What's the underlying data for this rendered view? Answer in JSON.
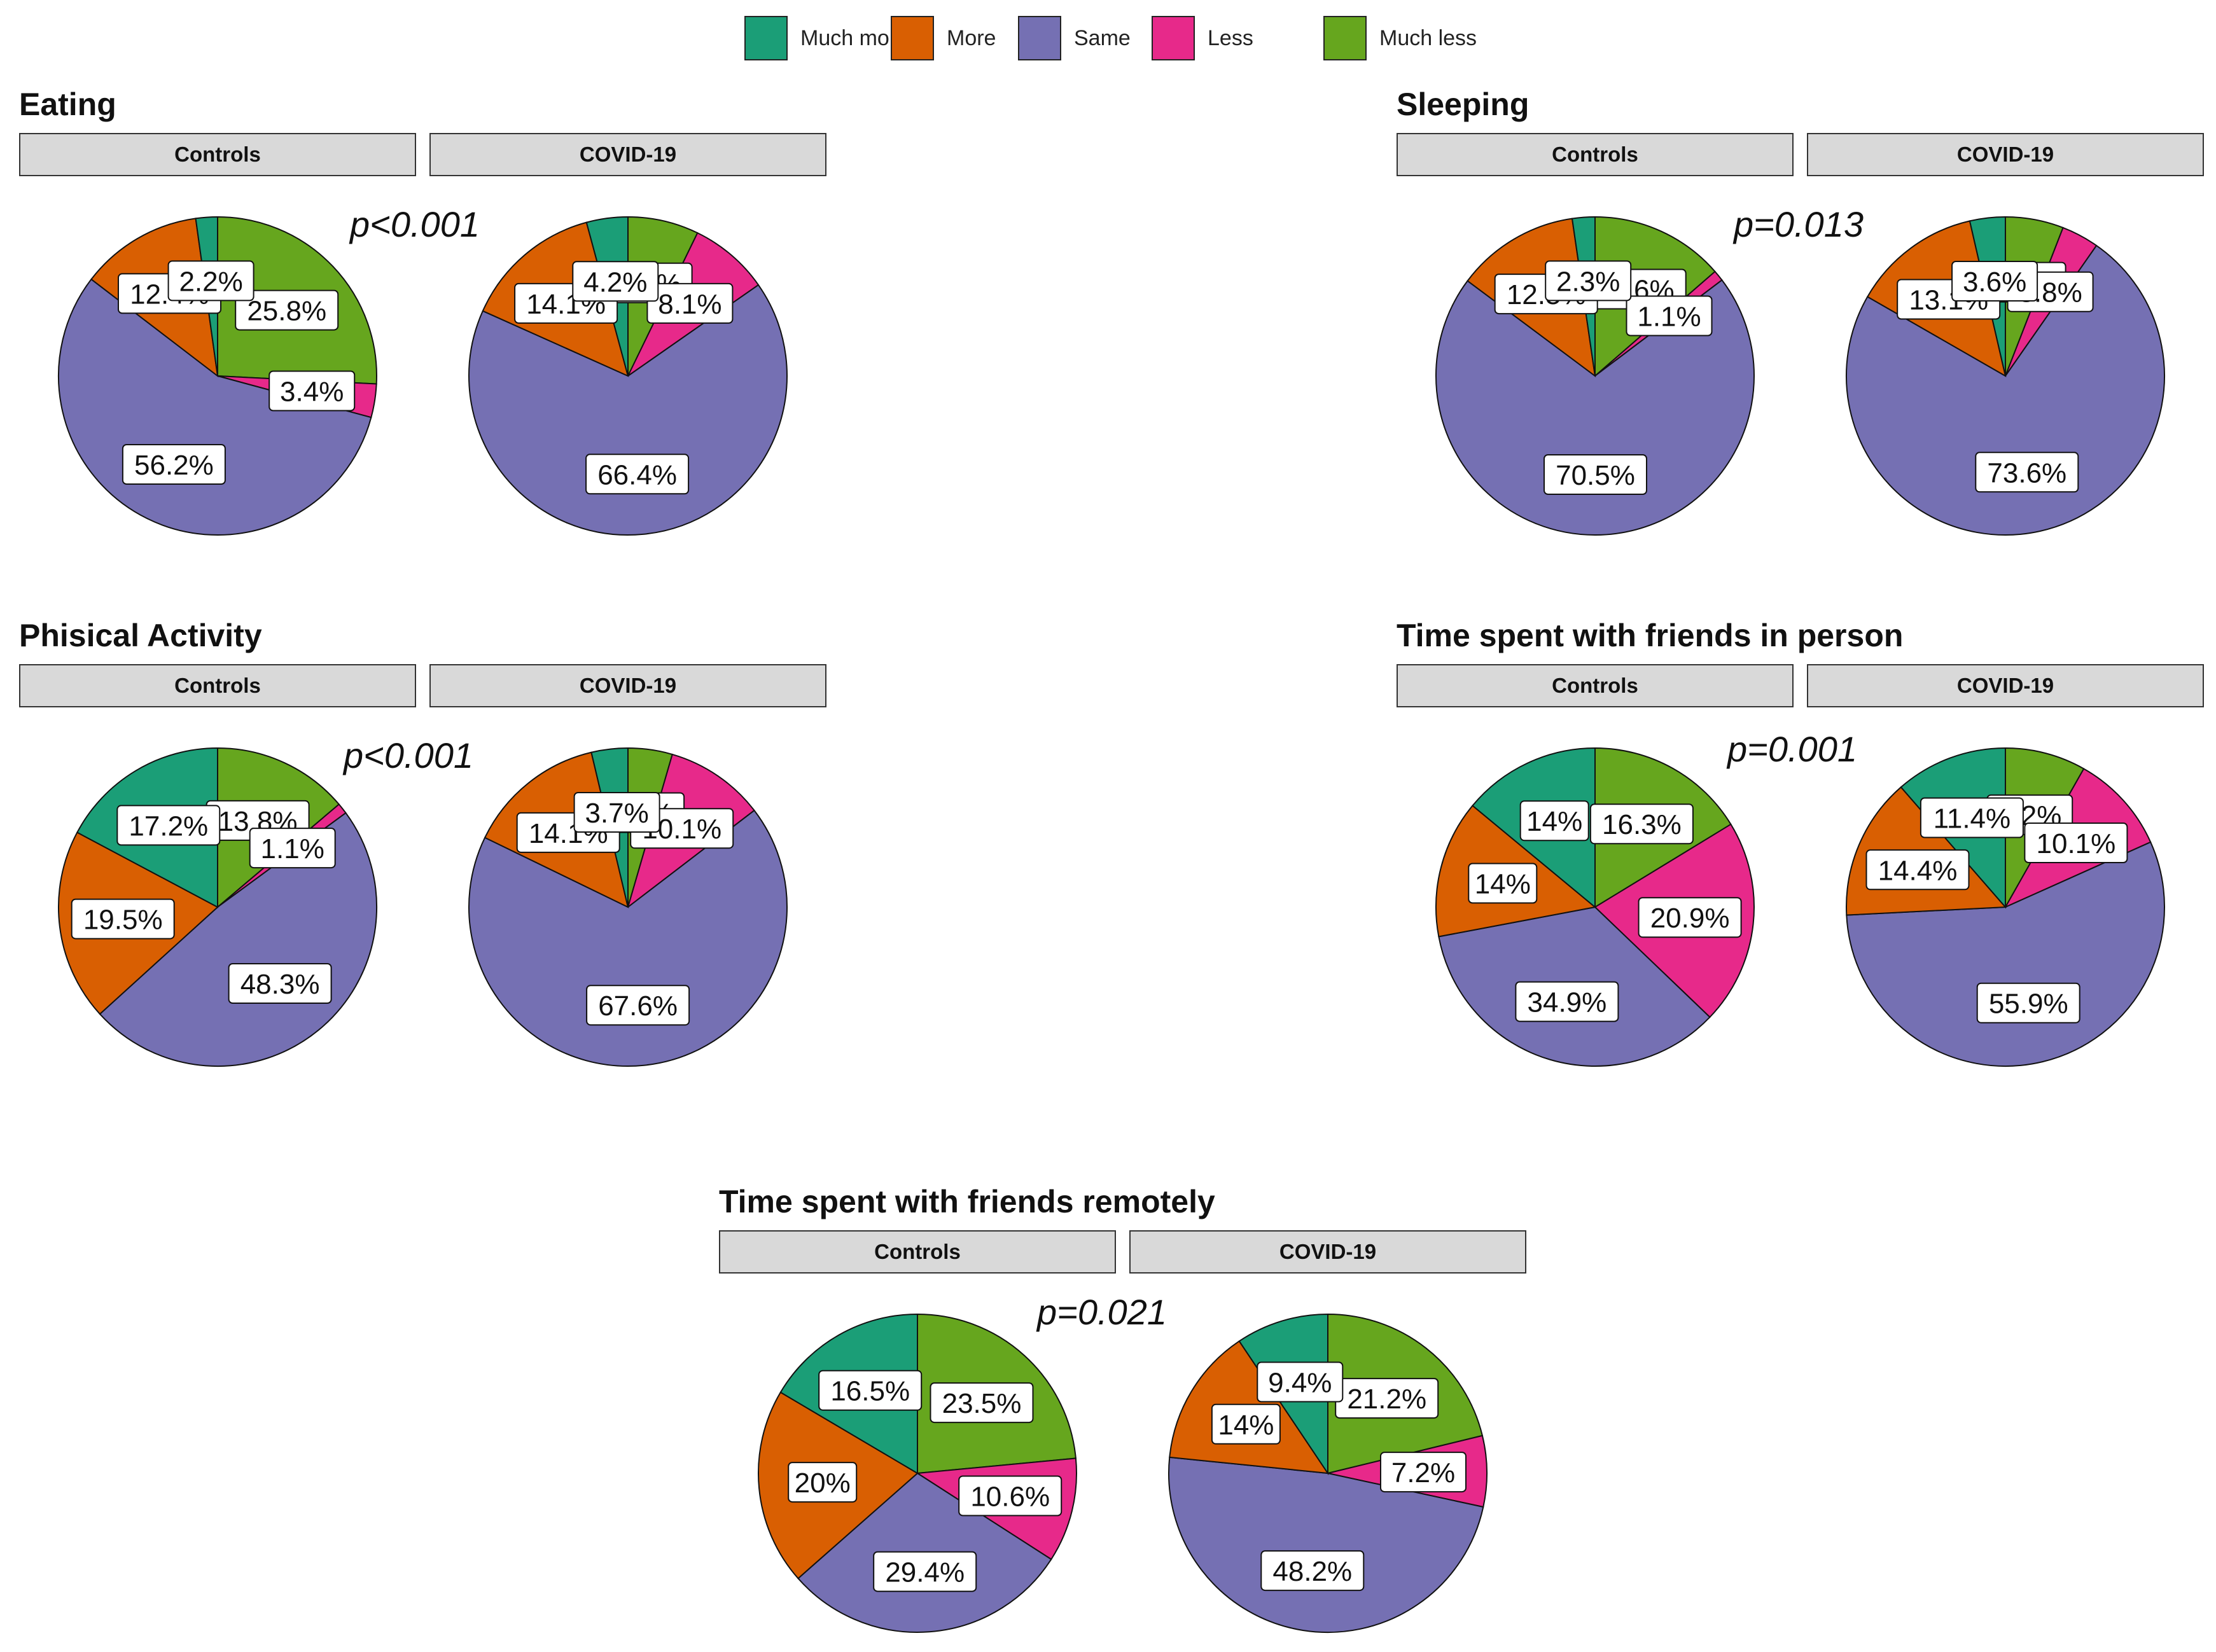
{
  "colors": {
    "Much more": "#1b9e77",
    "More": "#d95f02",
    "Same": "#7570b3",
    "Less": "#e7298a",
    "Much less": "#66a61e"
  },
  "chart_data": {
    "type": "pie",
    "legend": [
      "Much more",
      "More",
      "Same",
      "Less",
      "Much less"
    ],
    "legend_position": "top",
    "groups": [
      "Controls",
      "COVID-19"
    ],
    "panels": [
      {
        "title": "Eating",
        "p_value": "p<0.001",
        "controls": {
          "Much more": 2.2,
          "More": 12.4,
          "Same": 56.2,
          "Less": 3.4,
          "Much less": 25.8
        },
        "covid": {
          "Much more": 4.2,
          "More": 14.1,
          "Same": 66.4,
          "Less": 8.1,
          "Much less": 7.2
        }
      },
      {
        "title": "Sleeping",
        "p_value": "p=0.013",
        "controls": {
          "Much more": 2.3,
          "More": 12.5,
          "Same": 70.5,
          "Less": 1.1,
          "Much less": 13.6
        },
        "covid": {
          "Much more": 3.6,
          "More": 13.1,
          "Same": 73.6,
          "Less": 3.8,
          "Much less": 5.9
        }
      },
      {
        "title": "Phisical Activity",
        "p_value": "p<0.001",
        "controls": {
          "Much more": 17.2,
          "More": 19.5,
          "Same": 48.3,
          "Less": 1.1,
          "Much less": 13.8
        },
        "covid": {
          "Much more": 3.7,
          "More": 14.1,
          "Same": 67.6,
          "Less": 10.1,
          "Much less": 4.5
        }
      },
      {
        "title": "Time spent with friends in person",
        "p_value": "p=0.001",
        "controls": {
          "Much more": 14,
          "More": 14,
          "Same": 34.9,
          "Less": 20.9,
          "Much less": 16.3
        },
        "covid": {
          "Much more": 11.4,
          "More": 14.4,
          "Same": 55.9,
          "Less": 10.1,
          "Much less": 8.2
        }
      },
      {
        "title": "Time spent with friends remotely",
        "p_value": "p=0.021",
        "controls": {
          "Much more": 16.5,
          "More": 20,
          "Same": 29.4,
          "Less": 10.6,
          "Much less": 23.5
        },
        "covid": {
          "Much more": 9.4,
          "More": 14,
          "Same": 48.2,
          "Less": 7.2,
          "Much less": 21.2
        }
      }
    ]
  }
}
